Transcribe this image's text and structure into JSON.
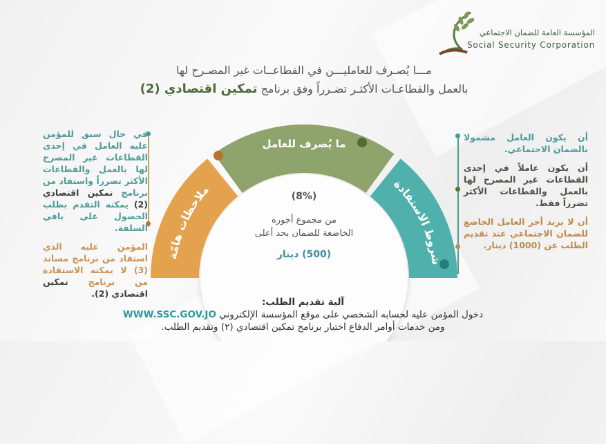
{
  "logo": {
    "arabic": "المؤسسة العامة للضمان الاجتماعي",
    "english": "Social Security Corporation"
  },
  "title": {
    "line1": "مـــا يُصـرف للعامليـــن في القطاعــات غير المصـرح لها",
    "line2": "بالعمل والقطاعـات الأكثـر تضـرراً وفق برنامج",
    "line2_bold": "تمكين اقتصادي (2)"
  },
  "gauge": {
    "segments": [
      {
        "label": "ملاحظات هامّة",
        "color": "#e4a24f"
      },
      {
        "label": "ما يُصرف للعامل",
        "color": "#8fa46d"
      },
      {
        "label": "شروط الاستفادة",
        "color": "#4fb0ac"
      }
    ],
    "percent": "(8%)",
    "desc_line1": "من مجموع أجوره",
    "desc_line2": "الخاضعة للضمان بحد أعلى",
    "max": "(500) دينار"
  },
  "notes": [
    {
      "a": "في حال سبق للمؤمن عليه العامل في إحدى القطاعات غير المصرح لها بالعمل والقطاعات الأكثر تضرراً واستفاد من برنامج",
      "b": "تمكين اقتصادي (2)",
      "c": "يمكنه التقدم بطلب الحصول على باقي السلفة."
    },
    {
      "a": "المؤمن عليه الذي استفاد من برنامج مساند (3) لا يمكنه الاستفادة من برنامج",
      "b": "تمكين اقتصادي (2)."
    }
  ],
  "conditions": [
    "أن يكون العامل مشمولا بالضمان الاجتماعي.",
    "أن يكون عاملاً في إحدى القطاعات غير المصرح لها بالعمل والقطاعات الأكثر تضرراً فقط.",
    "أن لا يزيد أجر العامل الخاضع للضمان الاجتماعي عند تقديم الطلب عن (1000) دينار."
  ],
  "footer": {
    "heading": "آلية تقديم الطلب:",
    "line1": "دخول المؤمن عليه لحسابه الشخصي على موقع المؤسسة الإلكتروني",
    "url": "WWW.SSC.GOV.JO",
    "line2": "ومن خدمات أوامر الدفاع اختيار برنامج تمكين اقتصادي (٢) وتقديم الطلب."
  }
}
